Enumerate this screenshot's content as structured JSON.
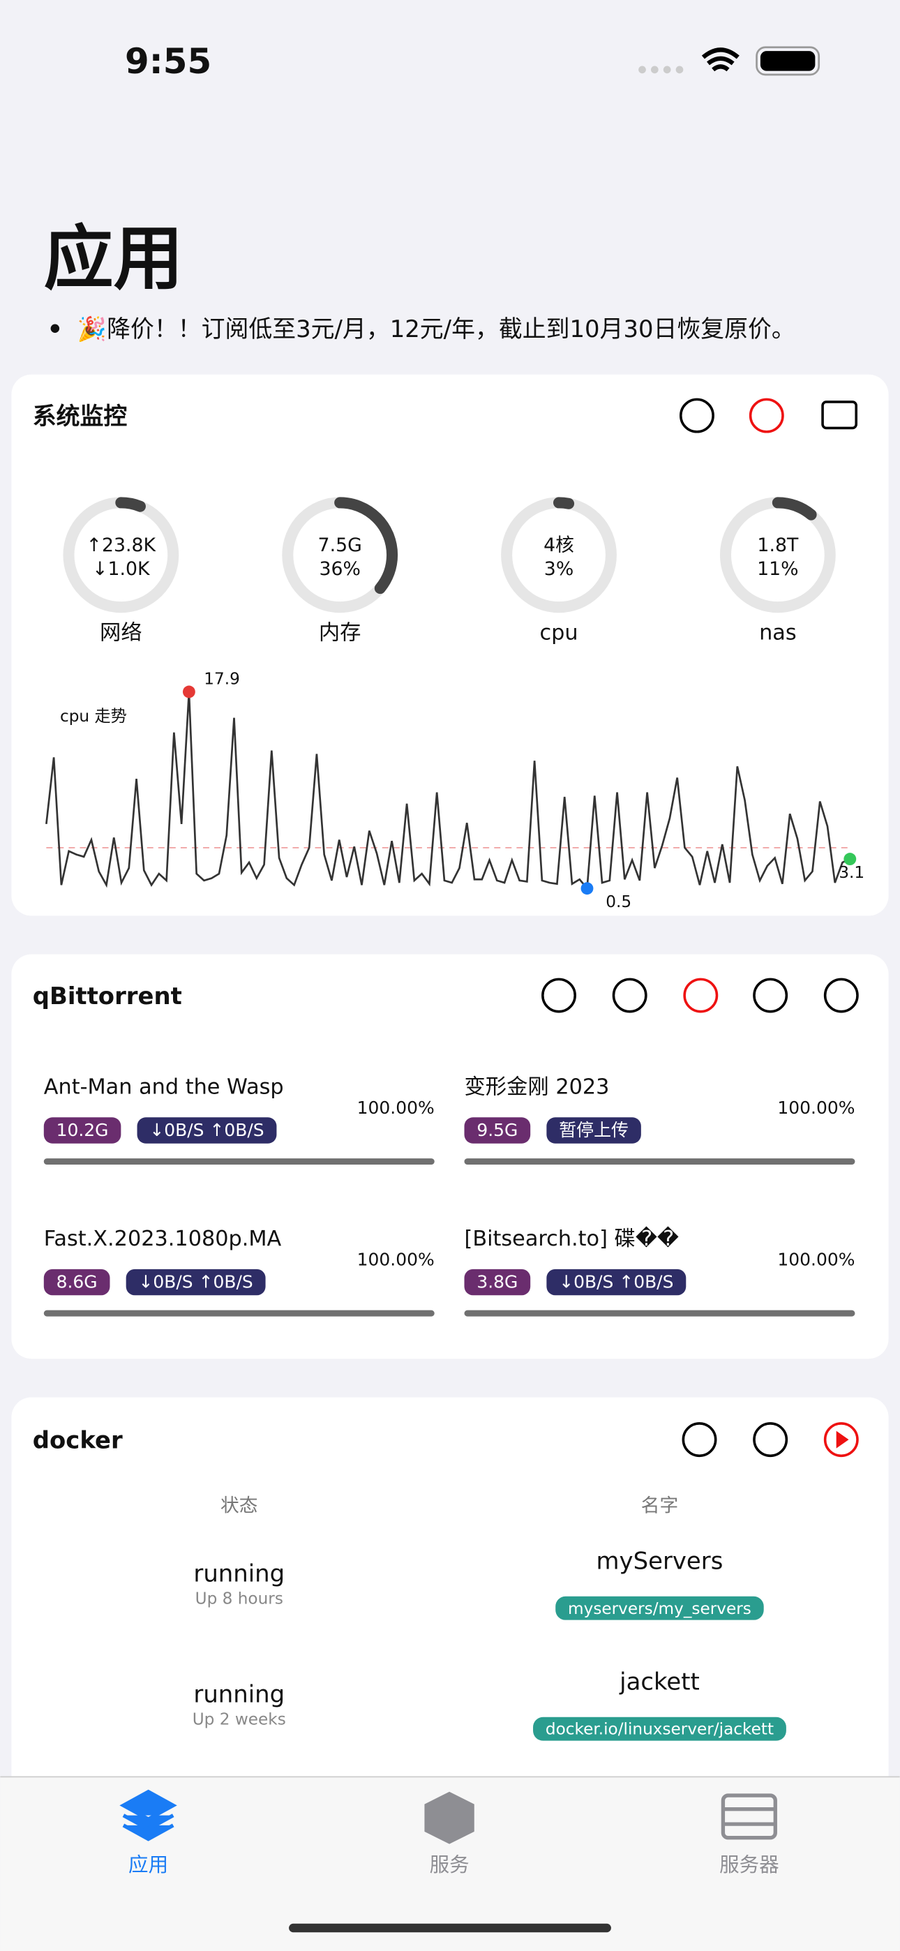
{
  "status_bar": {
    "time": "9:55"
  },
  "header": {
    "title": "应用",
    "notice": "🎉降价！！订阅低至3元/月，12元/年，截止到10月30日恢复原价。"
  },
  "monitor": {
    "title": "系统监控",
    "gauges": [
      {
        "lines": [
          "↑23.8K",
          "↓1.0K"
        ],
        "label": "网络",
        "value": 6
      },
      {
        "lines": [
          "7.5G",
          "36%"
        ],
        "label": "内存",
        "value": 36
      },
      {
        "lines": [
          "4核",
          "3%"
        ],
        "label": "cpu",
        "value": 3
      },
      {
        "lines": [
          "1.8T",
          "11%"
        ],
        "label": "nas",
        "value": 11
      }
    ],
    "cpu_chart": {
      "type": "line",
      "title": "cpu 走势",
      "ylim": [
        0.5,
        17.9
      ],
      "mean": 4.1,
      "color": "#333333",
      "values": [
        6.2,
        12.1,
        0.8,
        3.8,
        3.5,
        3.3,
        4.8,
        2.0,
        0.8,
        5.0,
        1.0,
        2.3,
        10.2,
        2.1,
        0.8,
        1.8,
        1.2,
        14.3,
        6.2,
        17.9,
        1.8,
        1.2,
        1.4,
        1.8,
        5.2,
        15.6,
        1.9,
        2.8,
        1.4,
        2.6,
        12.7,
        3.2,
        1.4,
        0.8,
        2.6,
        4.1,
        12.4,
        3.5,
        1.2,
        4.8,
        1.5,
        4.2,
        0.8,
        5.6,
        3.6,
        0.8,
        4.7,
        1.0,
        8.0,
        1.2,
        1.8,
        0.9,
        9.0,
        1.2,
        1.0,
        2.3,
        6.3,
        1.3,
        1.3,
        3.0,
        1.2,
        1.0,
        3.0,
        1.2,
        1.1,
        11.8,
        1.2,
        1.0,
        0.9,
        8.6,
        0.9,
        1.3,
        0.5,
        8.7,
        1.0,
        1.2,
        9.0,
        1.3,
        3.0,
        1.2,
        9.0,
        2.3,
        4.3,
        6.7,
        10.3,
        4.1,
        3.3,
        0.8,
        3.8,
        1.0,
        4.4,
        1.0,
        11.3,
        8.3,
        3.5,
        1.2,
        2.5,
        3.2,
        0.9,
        7.1,
        4.9,
        1.2,
        2.0,
        8.2,
        6.0,
        1.0,
        2.8,
        3.1
      ],
      "max_index": 19,
      "min_index": 72
    }
  },
  "torrents": {
    "title": "qBittorrent",
    "items": [
      {
        "name": "Ant-Man and the Wasp",
        "size": "10.2G",
        "speed": "↓0B/S ↑0B/S",
        "progress": {
          "value": 100,
          "label": "100.00%"
        }
      },
      {
        "name": "变形金刚 2023",
        "size": "9.5G",
        "speed": "暂停上传",
        "progress": {
          "value": 100,
          "label": "100.00%"
        }
      },
      {
        "name": "Fast.X.2023.1080p.MA",
        "size": "8.6G",
        "speed": "↓0B/S ↑0B/S",
        "progress": {
          "value": 100,
          "label": "100.00%"
        }
      },
      {
        "name": "[Bitsearch.to] 碟��",
        "size": "3.8G",
        "speed": "↓0B/S ↑0B/S",
        "progress": {
          "value": 100,
          "label": "100.00%"
        }
      }
    ]
  },
  "docker": {
    "title": "docker",
    "headers": [
      "状态",
      "名字"
    ],
    "rows": [
      {
        "status": "running",
        "uptime": "Up 8 hours",
        "name": "myServers",
        "image": "myservers/my_servers"
      },
      {
        "status": "running",
        "uptime": "Up 2 weeks",
        "name": "jackett",
        "image": "docker.io/linuxserver/jackett"
      }
    ]
  },
  "tabs": [
    "应用",
    "服务",
    "服务器"
  ]
}
